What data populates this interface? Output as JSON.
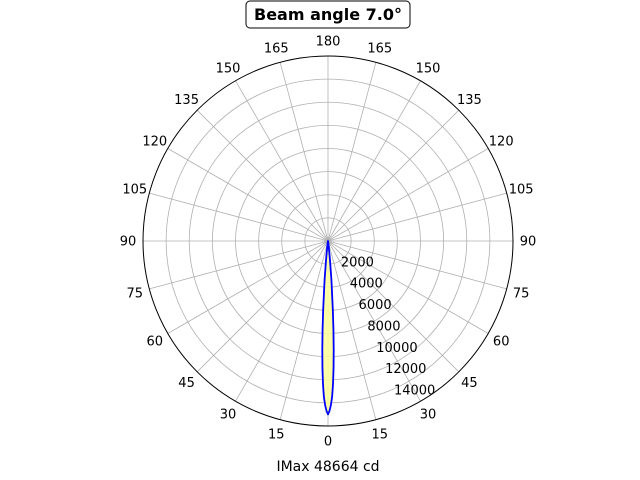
{
  "chart_data": {
    "type": "polar-line",
    "title": "Beam angle 7.0°",
    "xlabel": "IMax 48664 cd",
    "angle_tick_labels": [
      "0",
      "15",
      "30",
      "45",
      "60",
      "75",
      "90",
      "105",
      "120",
      "135",
      "150",
      "165",
      "180",
      "165",
      "150",
      "135",
      "120",
      "105",
      "90",
      "75",
      "60",
      "45",
      "30",
      "15"
    ],
    "radial_tick_labels": [
      "2000",
      "4000",
      "6000",
      "8000",
      "10000",
      "12000",
      "14000"
    ],
    "radial_ticks": [
      2000,
      4000,
      6000,
      8000,
      10000,
      12000,
      14000
    ],
    "rlim": [
      0,
      16000
    ],
    "grid": true,
    "series": [
      {
        "color": "#0000ff",
        "angles_deg": [
          0,
          0.5,
          1,
          1.5,
          2,
          2.5,
          3,
          3.5,
          4,
          5,
          6,
          8,
          10,
          15
        ],
        "values": [
          15000,
          14700,
          14200,
          13500,
          12400,
          11000,
          9400,
          7700,
          6000,
          3400,
          1600,
          400,
          80,
          0
        ]
      }
    ],
    "fill_color": "#ffff99"
  }
}
